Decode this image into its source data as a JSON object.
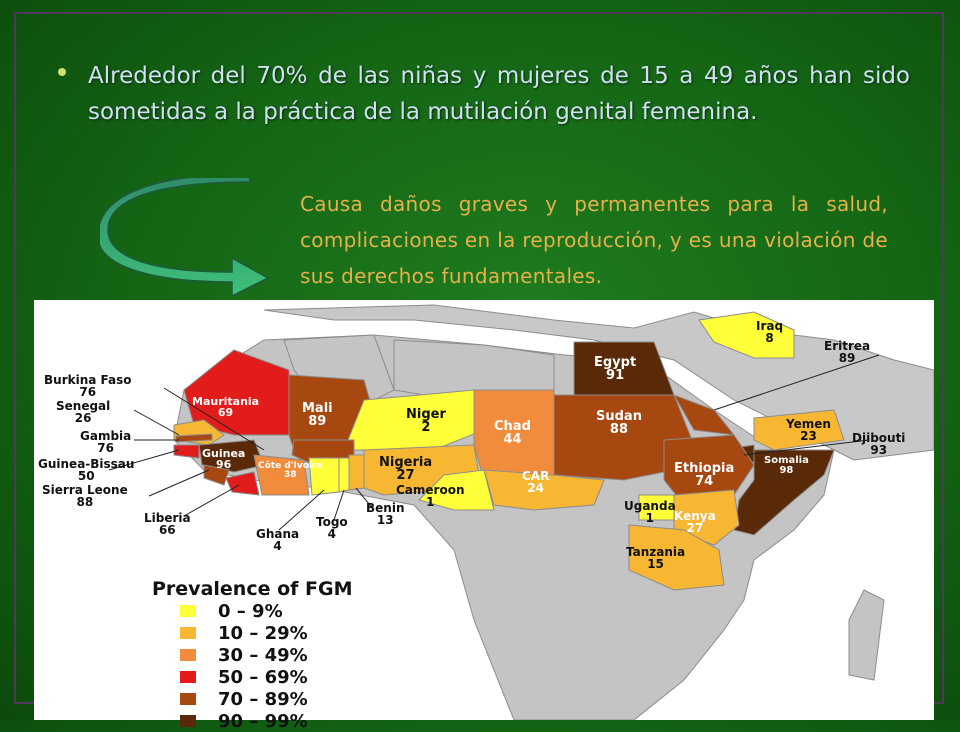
{
  "slide": {
    "bullet": "Alrededor del 70% de las niñas y mujeres de 15 a 49 años han sido sometidas a la práctica de la mutilación genital femenina.",
    "cause": "Causa daños graves y permanentes para la salud, complicaciones en la reproducción, y es una violación de sus derechos fundamentales.",
    "accent_colors": {
      "bullet_text": "#cfe0f0",
      "cause_text": "#e6b14a",
      "background": "#146414"
    }
  },
  "map": {
    "legend": {
      "title": "Prevalence of FGM",
      "classes": [
        {
          "label": "0 – 9%",
          "color": "#ffff3a"
        },
        {
          "label": "10 – 29%",
          "color": "#f7b733"
        },
        {
          "label": "30 – 49%",
          "color": "#f08c3c"
        },
        {
          "label": "50 – 69%",
          "color": "#e21b1b"
        },
        {
          "label": "70 – 89%",
          "color": "#a84811"
        },
        {
          "label": "90 – 99%",
          "color": "#5a2a08"
        }
      ]
    },
    "countries": [
      {
        "name": "Iraq",
        "value": "8"
      },
      {
        "name": "Eritrea",
        "value": "89"
      },
      {
        "name": "Egypt",
        "value": "91"
      },
      {
        "name": "Burkina Faso",
        "value": "76"
      },
      {
        "name": "Senegal",
        "value": "26"
      },
      {
        "name": "Mauritania",
        "value": "69"
      },
      {
        "name": "Mali",
        "value": "89"
      },
      {
        "name": "Niger",
        "value": "2"
      },
      {
        "name": "Chad",
        "value": "44"
      },
      {
        "name": "Sudan",
        "value": "88"
      },
      {
        "name": "Yemen",
        "value": "23"
      },
      {
        "name": "Djibouti",
        "value": "93"
      },
      {
        "name": "Gambia",
        "value": "76"
      },
      {
        "name": "Guinea",
        "value": "96"
      },
      {
        "name": "Guinea-Bissau",
        "value": "50"
      },
      {
        "name": "Côte d'Ivoire",
        "value": "38"
      },
      {
        "name": "Nigeria",
        "value": "27"
      },
      {
        "name": "Ethiopia",
        "value": "74"
      },
      {
        "name": "Somalia",
        "value": "98"
      },
      {
        "name": "Sierra Leone",
        "value": "88"
      },
      {
        "name": "CAR",
        "value": "24"
      },
      {
        "name": "Cameroon",
        "value": "1"
      },
      {
        "name": "Benin",
        "value": "13"
      },
      {
        "name": "Liberia",
        "value": "66"
      },
      {
        "name": "Togo",
        "value": "4"
      },
      {
        "name": "Ghana",
        "value": "4"
      },
      {
        "name": "Uganda",
        "value": "1"
      },
      {
        "name": "Kenya",
        "value": "27"
      },
      {
        "name": "Tanzania",
        "value": "15"
      }
    ]
  }
}
